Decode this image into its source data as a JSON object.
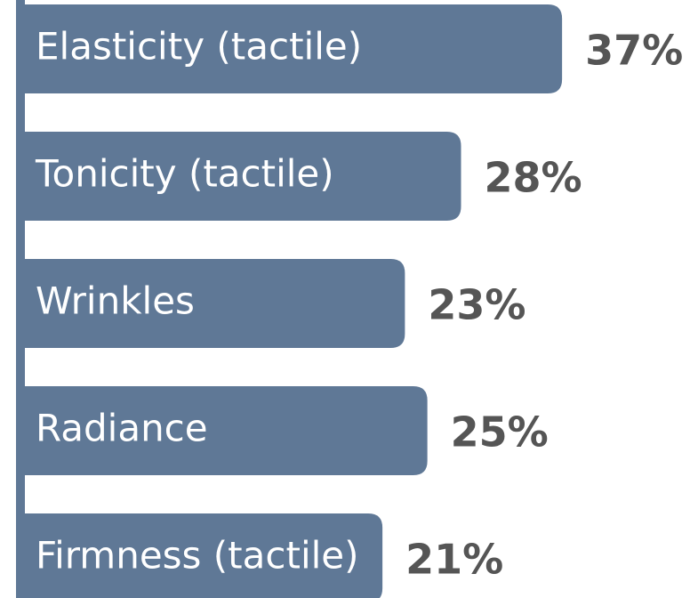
{
  "chart_data": {
    "type": "bar",
    "orientation": "horizontal",
    "categories": [
      "Elasticity (tactile)",
      "Tonicity (tactile)",
      "Wrinkles",
      "Radiance",
      "Firmness (tactile)"
    ],
    "values": [
      37,
      28,
      23,
      25,
      21
    ],
    "value_labels": [
      "37%",
      "28%",
      "23%",
      "25%",
      "21%"
    ],
    "color": "#5f7896"
  }
}
